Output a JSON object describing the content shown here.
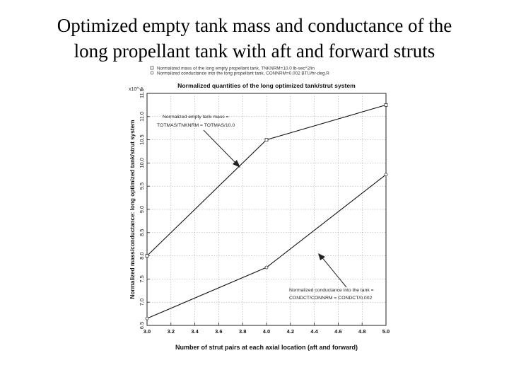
{
  "slide": {
    "title_line1": "Optimized empty tank mass and conductance of the",
    "title_line2": "long propellant tank with aft and forward struts"
  },
  "chart_data": {
    "type": "line",
    "title": "Normalized quantities of the long optimized tank/strut system",
    "xlabel": "Number of strut pairs at each axial location (aft and forward)",
    "ylabel": "Normalized mass/conductance: long optimized tank/strut system",
    "y_multiplier": "x10^-1",
    "xlim": [
      3.0,
      5.0
    ],
    "ylim": [
      6.5,
      11.5
    ],
    "x_ticks": [
      "3.0",
      "3.2",
      "3.4",
      "3.6",
      "3.8",
      "4.0",
      "4.2",
      "4.4",
      "4.6",
      "4.8",
      "5.0"
    ],
    "y_ticks": [
      "6.5",
      "7.0",
      "7.5",
      "8.0",
      "8.5",
      "9.0",
      "9.5",
      "10.0",
      "10.5",
      "11.0",
      "11.5"
    ],
    "grid": true,
    "legend": {
      "placement": "top",
      "entries": [
        "Normalized mass of the long empty propellant tank, TNKNRM=10.0 lb-sec^2/in",
        "Normalized conductance into the long propellant tank, CONNRM=0.002 BTU/hr-deg.R"
      ]
    },
    "series": [
      {
        "name": "Normalized empty tank mass",
        "x": [
          3.0,
          4.0,
          5.0
        ],
        "values": [
          8.0,
          10.5,
          11.25
        ]
      },
      {
        "name": "Normalized conductance into the tank",
        "x": [
          3.0,
          4.0,
          5.0
        ],
        "values": [
          6.65,
          7.75,
          9.75
        ]
      }
    ],
    "annotations": {
      "mass_line1": "Normalized empty tank mass =",
      "mass_line2": "TOTMAS/TNKNRM = TOTMAS/10.0",
      "cond_line1": "Normalized conductance into the tank =",
      "cond_line2": "CONDCT/CONNRM = CONDCT/0.002"
    }
  }
}
